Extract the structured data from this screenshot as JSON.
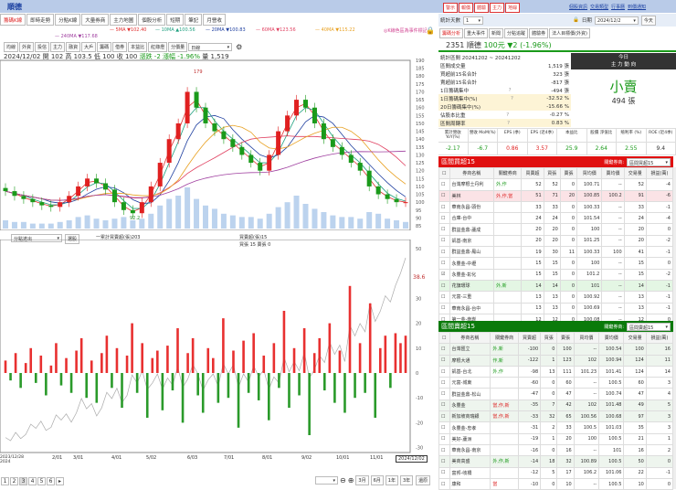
{
  "window": {
    "title": "順德"
  },
  "tabs": [
    "籌碼K線",
    "即時走勢",
    "分點K線",
    "大量券商",
    "主力地圖",
    "個股分析",
    "短期",
    "筆記",
    "月營收"
  ],
  "ma_legend": [
    {
      "label": "5MA ▼102.40",
      "color": "#e03030"
    },
    {
      "label": "10MA ▲100.56",
      "color": "#20a080"
    },
    {
      "label": "20MA ▼100.83",
      "color": "#2040a0"
    },
    {
      "label": "60MA ▼123.56",
      "color": "#e04060"
    },
    {
      "label": "40MA ▼115.22",
      "color": "#e8a020"
    },
    {
      "label": "240MA ▼117.68",
      "color": "#a040a0"
    }
  ],
  "event_note": "◎K線色區為事件標記",
  "toolbar": {
    "buttons": [
      "均線",
      "外資",
      "投信",
      "主力",
      "融資",
      "大戶",
      "籌碼",
      "借券",
      "本益比",
      "紅綠燈",
      "分價量"
    ],
    "period": "日線"
  },
  "ohlc": {
    "date": "2024/12/02",
    "open": "開 102",
    "high": "高 103.5",
    "low": "低 100",
    "close": "收 100",
    "change": "漲跌 -2",
    "pct": "漲幅 -1.96%",
    "vol": "量 1,519"
  },
  "lower": {
    "select": "分點進出",
    "button": "選股",
    "legend_cum": "一累計買賣超(張)203",
    "legend_net": "買賣超(張)15",
    "legend_bs": "買張 15 賣張 0",
    "last_cum": "38.6"
  },
  "chart_data": [
    {
      "type": "candlestick",
      "price_axis": [
        85,
        190
      ],
      "high_label": "179",
      "low_label": "92.2",
      "x_ticks": [
        "2/01",
        "3/01",
        "4/01",
        "5/02",
        "6/03",
        "7/01",
        "8/01",
        "9/02",
        "10/01",
        "11/01",
        "2024/12/02"
      ],
      "x_start_label": "2023/12/28 2024",
      "weekly_close": [
        107,
        104,
        102,
        100,
        98,
        97,
        100,
        104,
        110,
        115,
        112,
        108,
        100,
        95,
        93,
        100,
        110,
        125,
        140,
        150,
        170,
        160,
        150,
        145,
        140,
        135,
        130,
        125,
        120,
        130,
        145,
        155,
        165,
        160,
        150,
        140,
        135,
        130,
        125,
        120,
        110,
        105,
        102,
        100,
        100
      ],
      "weekly_volume": [
        5,
        4,
        4,
        3,
        3,
        3,
        4,
        5,
        7,
        8,
        6,
        5,
        6,
        7,
        5,
        6,
        9,
        14,
        18,
        20,
        25,
        18,
        14,
        12,
        9,
        8,
        7,
        7,
        6,
        9,
        13,
        16,
        20,
        15,
        12,
        10,
        8,
        7,
        7,
        6,
        10,
        9,
        6,
        5,
        4
      ]
    },
    {
      "type": "bar",
      "y_axis": [
        -30,
        50
      ],
      "y_ticks": [
        50,
        30,
        20,
        10,
        0,
        -10,
        -20,
        -30
      ],
      "net_buy": [
        5,
        -3,
        8,
        -6,
        4,
        10,
        -4,
        7,
        -9,
        3,
        12,
        -5,
        6,
        -8,
        9,
        14,
        -10,
        5,
        -12,
        8,
        15,
        -6,
        10,
        -14,
        7,
        20,
        -8,
        12,
        -18,
        6,
        9,
        -15,
        11,
        -7,
        18,
        -20,
        8,
        14,
        -9,
        -16,
        10,
        6,
        -12,
        22,
        -10,
        9,
        -22,
        13,
        -8,
        16,
        -11,
        7,
        -19,
        12,
        -6,
        25,
        -14,
        10,
        -9,
        18,
        -25,
        8,
        14,
        -7,
        20,
        -12,
        9,
        -16,
        35,
        -10,
        12,
        -8,
        28,
        -18,
        10,
        15,
        -6,
        16,
        12,
        15
      ]
    }
  ],
  "right": {
    "top_buttons": [
      "警示",
      "報價",
      "體驗",
      "主力",
      "地緣"
    ],
    "links": [
      "個股資訊",
      "交易類型",
      "行事曆",
      "到價通知"
    ],
    "days_label": "統計天數",
    "days_value": "1",
    "date_label": "日期",
    "date_value": "2024/12/2",
    "today_btn": "今天",
    "tabs": [
      "籌碼分析",
      "重大事件",
      "新聞",
      "分點追蹤",
      "體驗券",
      "法人目標價(外資)"
    ],
    "stock": {
      "code_name": "2351 順德",
      "price": "100元",
      "change": "▼2 (-1.96%)"
    },
    "stats": [
      {
        "k": "統計區間  20241202 ~ 20241202",
        "v": ""
      },
      {
        "k": "區間成交量",
        "v": "1,519 張"
      },
      {
        "k": "買超前15名合計",
        "v": "323 張"
      },
      {
        "k": "賣超前15名合計",
        "v": "-817 張"
      },
      {
        "k": "1日籌碼集中",
        "v": "-494 張",
        "q": "?"
      },
      {
        "k": "1日籌碼集中(%)",
        "v": "-32.52 %",
        "q": "?",
        "hl": true
      },
      {
        "k": "20日籌碼集中(%)",
        "v": "-15.66 %",
        "hl": true
      },
      {
        "k": "佔股本比重",
        "v": "-0.27 %",
        "q": "?"
      },
      {
        "k": "區間周轉率",
        "v": "0.83 %",
        "q": "?",
        "hl": true
      }
    ],
    "main_force": {
      "title1": "今日",
      "title2": "主 力 動 向",
      "verdict": "小賣",
      "amount": "494 張"
    },
    "metrics": [
      {
        "k": "累計營收 YoY(%)",
        "v": "-2.17",
        "c": "#1a9a1a"
      },
      {
        "k": "營收 MoM(%)",
        "v": "-6.7",
        "c": "#1a9a1a"
      },
      {
        "k": "EPS (季)",
        "v": "0.86",
        "c": "#e02020"
      },
      {
        "k": "EPS (近4季)",
        "v": "3.57",
        "c": "#e02020"
      },
      {
        "k": "本益比",
        "v": "25.9",
        "c": "#1a9a1a"
      },
      {
        "k": "股價 淨值比",
        "v": "2.64",
        "c": "#1a9a1a"
      },
      {
        "k": "殖利率 (%)",
        "v": "2.55",
        "c": "#1a9a1a"
      },
      {
        "k": "ROE (近4季)",
        "v": "9.4",
        "c": "#333"
      }
    ],
    "columns": [
      "券商名稱",
      "關鍵券商",
      "買賣超",
      "買張",
      "賣張",
      "買均價",
      "賣均價",
      "交易量",
      "損益(萬)"
    ],
    "key_label": "關鍵券商:",
    "buy": {
      "title": "區間買超15",
      "select": "區間買超15",
      "colors": {
        "header": "#e01010"
      },
      "rows": [
        [
          "台灣摩根士丹利",
          "外,作",
          "52",
          "52",
          "0",
          "100.71",
          "--",
          "52",
          "-4"
        ],
        [
          "美林",
          "外,作,當",
          "51",
          "71",
          "20",
          "100.85",
          "100.2",
          "91",
          "-6"
        ],
        [
          "華南永昌-頭份",
          "",
          "33",
          "33",
          "0",
          "100.33",
          "--",
          "33",
          "-1"
        ],
        [
          "合庫-台中",
          "",
          "24",
          "24",
          "0",
          "101.54",
          "--",
          "24",
          "-4"
        ],
        [
          "群益金鼎-蘆成",
          "",
          "20",
          "20",
          "0",
          "100",
          "--",
          "20",
          "0"
        ],
        [
          "凱基-南京",
          "",
          "20",
          "20",
          "0",
          "101.25",
          "--",
          "20",
          "-2"
        ],
        [
          "群益金鼎-鳳山",
          "",
          "19",
          "30",
          "11",
          "100.33",
          "100",
          "41",
          "-1"
        ],
        [
          "永豐金-中壢",
          "",
          "15",
          "15",
          "0",
          "100",
          "--",
          "15",
          "0"
        ],
        [
          "永豐金-彰化",
          "",
          "15",
          "15",
          "0",
          "101.2",
          "--",
          "15",
          "-2"
        ],
        [
          "花旗環球",
          "外,新",
          "14",
          "14",
          "0",
          "101",
          "--",
          "14",
          "-1"
        ],
        [
          "元富-三重",
          "",
          "13",
          "13",
          "0",
          "100.92",
          "--",
          "13",
          "-1"
        ],
        [
          "華南永昌-台中",
          "",
          "13",
          "13",
          "0",
          "100.69",
          "--",
          "13",
          "-1"
        ],
        [
          "第一金-南崁",
          "",
          "12",
          "12",
          "0",
          "100.08",
          "--",
          "12",
          "0"
        ]
      ]
    },
    "sell": {
      "title": "區間賣超15",
      "select": "區間賣超15",
      "colors": {
        "header": "#0a7a0a"
      },
      "rows": [
        [
          "台灣匯立",
          "外,新",
          "-100",
          "0",
          "100",
          "--",
          "100.54",
          "100",
          "16"
        ],
        [
          "摩根大通",
          "作,新",
          "-122",
          "1",
          "123",
          "102",
          "100.94",
          "124",
          "11"
        ],
        [
          "凱基-台北",
          "外,作",
          "-98",
          "13",
          "111",
          "101.23",
          "101.41",
          "124",
          "14"
        ],
        [
          "元富-城東",
          "",
          "-60",
          "0",
          "60",
          "--",
          "100.5",
          "60",
          "3"
        ],
        [
          "群益金鼎-松山",
          "",
          "-47",
          "0",
          "47",
          "--",
          "100.74",
          "47",
          "4"
        ],
        [
          "永豐金",
          "當,作,新",
          "-35",
          "7",
          "42",
          "102",
          "101.48",
          "49",
          "5"
        ],
        [
          "新加坡商瑞銀",
          "當,作,新",
          "-33",
          "32",
          "65",
          "100.56",
          "100.68",
          "97",
          "3"
        ],
        [
          "永豐金-忠孝",
          "",
          "-31",
          "2",
          "33",
          "100.5",
          "101.03",
          "35",
          "3"
        ],
        [
          "美好-蘆洲",
          "",
          "-19",
          "1",
          "20",
          "100",
          "100.5",
          "21",
          "1"
        ],
        [
          "華南永昌-南京",
          "",
          "-16",
          "0",
          "16",
          "--",
          "101",
          "16",
          "2"
        ],
        [
          "美商高盛",
          "外,作,新",
          "-14",
          "18",
          "32",
          "100.89",
          "100.5",
          "50",
          "0"
        ],
        [
          "富邦-岐橋",
          "",
          "-12",
          "5",
          "17",
          "106.2",
          "101.06",
          "22",
          "-1"
        ],
        [
          "康和",
          "當",
          "-10",
          "0",
          "10",
          "--",
          "100.5",
          "10",
          "0"
        ]
      ]
    }
  },
  "bottom": {
    "pages": [
      "1",
      "2",
      "3",
      "4",
      "5",
      "6",
      "▸"
    ],
    "ranges": [
      "3月",
      "6月",
      "1年",
      "3年"
    ],
    "restore": "還原"
  }
}
